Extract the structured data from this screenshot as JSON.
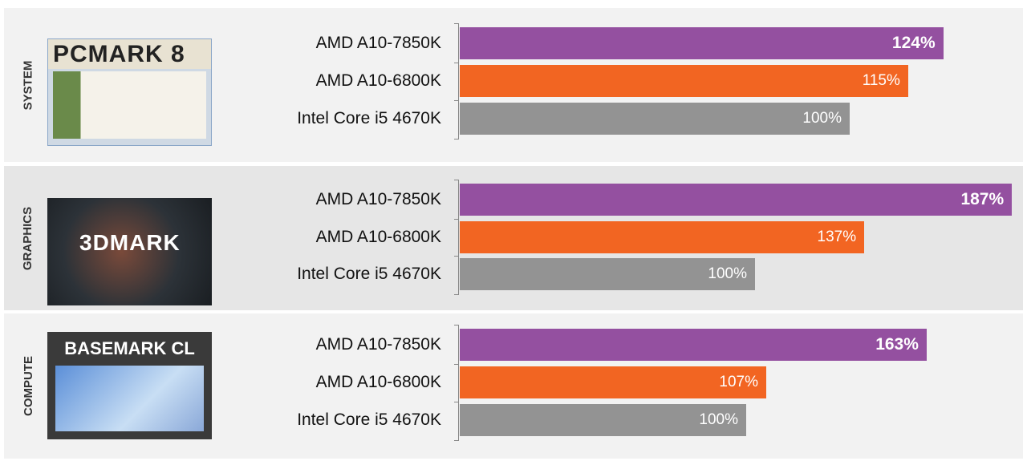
{
  "chart_data": {
    "type": "bar",
    "orientation": "horizontal",
    "groups": [
      {
        "category": "SYSTEM",
        "benchmark": "PCMARK 8",
        "labels": [
          "AMD A10-7850K",
          "AMD A10-6800K",
          "Intel Core i5 4670K"
        ],
        "values": [
          124,
          115,
          100
        ],
        "value_labels": [
          "124%",
          "115%",
          "100%"
        ]
      },
      {
        "category": "GRAPHICS",
        "benchmark": "3DMARK",
        "labels": [
          "AMD A10-7850K",
          "AMD A10-6800K",
          "Intel Core i5 4670K"
        ],
        "values": [
          187,
          137,
          100
        ],
        "value_labels": [
          "187%",
          "137%",
          "100%"
        ]
      },
      {
        "category": "COMPUTE",
        "benchmark": "BASEMARK CL",
        "labels": [
          "AMD A10-7850K",
          "AMD A10-6800K",
          "Intel Core i5 4670K"
        ],
        "values": [
          163,
          107,
          100
        ],
        "value_labels": [
          "163%",
          "107%",
          "100%"
        ]
      }
    ],
    "colors": [
      "#9450a0",
      "#f26522",
      "#939393"
    ],
    "grid": false,
    "legend": "none"
  }
}
